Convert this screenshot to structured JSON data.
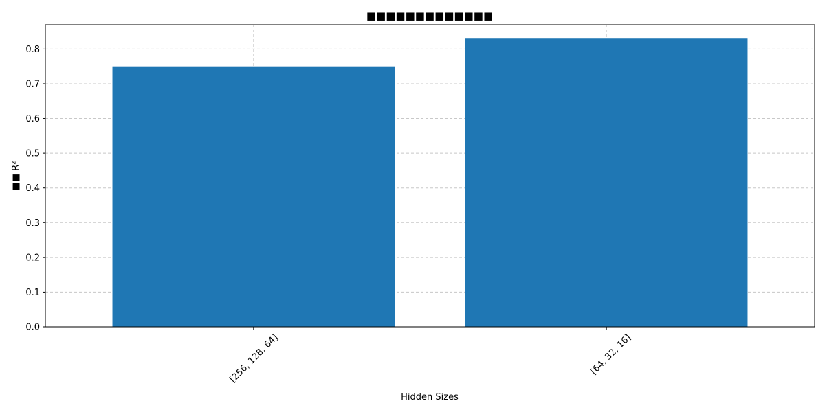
{
  "chart_data": {
    "type": "bar",
    "title": "■■■■■■■■■■■■■",
    "xlabel": "Hidden Sizes",
    "ylabel": "■■ R²",
    "categories": [
      "[256, 128, 64]",
      "[64, 32, 16]"
    ],
    "values": [
      0.75,
      0.83
    ],
    "ylim": [
      0,
      0.87
    ],
    "yticks": [
      "0.0",
      "0.1",
      "0.2",
      "0.3",
      "0.4",
      "0.5",
      "0.6",
      "0.7",
      "0.8"
    ],
    "grid": true,
    "grid_style": "dashed",
    "bar_color": "#1f77b4",
    "grid_color": "#c8c8c8",
    "x_tick_rotation_deg": 45
  }
}
